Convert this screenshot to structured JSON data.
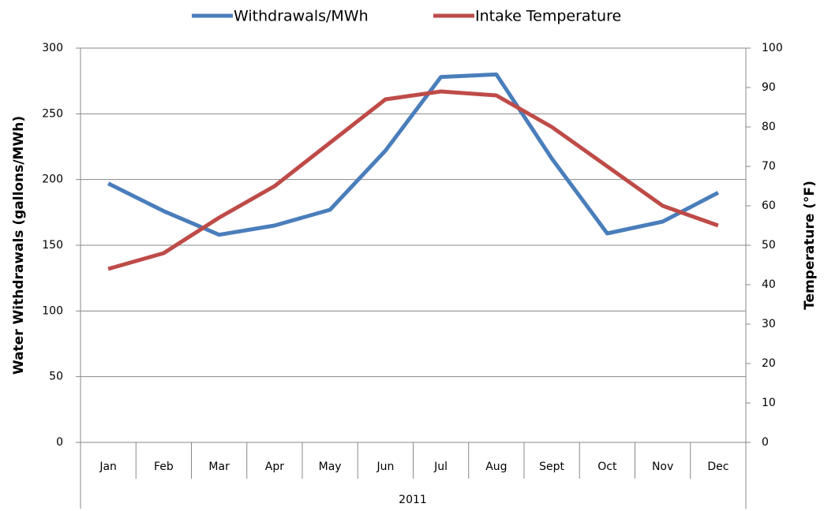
{
  "chart_data": {
    "type": "line",
    "categories": [
      "Jan",
      "Feb",
      "Mar",
      "Apr",
      "May",
      "Jun",
      "Jul",
      "Aug",
      "Sept",
      "Oct",
      "Nov",
      "Dec"
    ],
    "x_label": "2011",
    "y_label": "Water Withdrawals (gallons/MWh)",
    "y2_label": "Temperature (°F)",
    "series": [
      {
        "name": "Withdrawals/MWh",
        "color": "#4a7ebb",
        "values": [
          197,
          176,
          158,
          165,
          177,
          222,
          278,
          280,
          216,
          159,
          168,
          190
        ]
      },
      {
        "name": "Intake Temperature",
        "color": "#be4b48",
        "axis": "y2",
        "values": [
          44,
          48,
          57,
          65,
          76,
          87,
          89,
          88,
          80,
          70,
          60,
          55
        ]
      }
    ],
    "ylim": [
      0,
      300
    ],
    "yticks": [
      0,
      50,
      100,
      150,
      200,
      250,
      300
    ],
    "y2lim": [
      0,
      100
    ],
    "y2ticks": [
      0,
      10,
      20,
      30,
      40,
      50,
      60,
      70,
      80,
      90,
      100
    ],
    "grid": true,
    "legend": "top"
  }
}
